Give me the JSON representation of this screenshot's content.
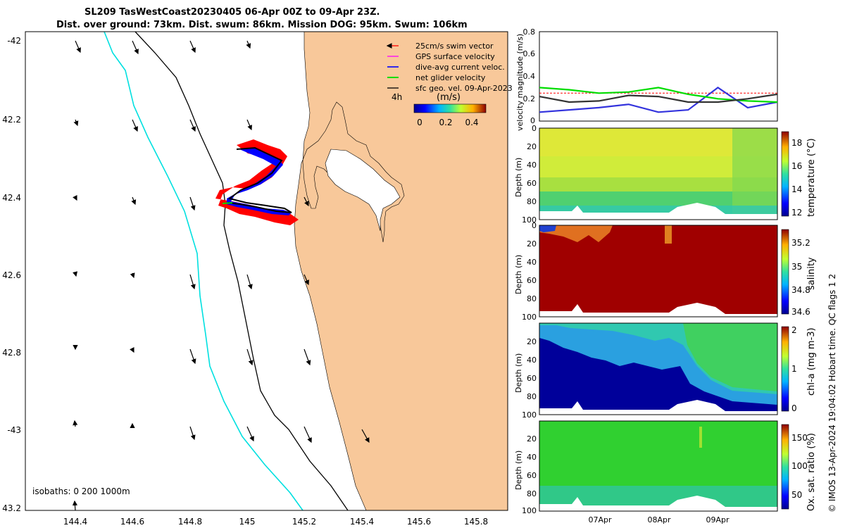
{
  "header": {
    "title_line1": "SL209 TasWestCoast20230405 06-Apr 00Z to 09-Apr 23Z.",
    "title_line2": "Dist. over ground: 73km. Dist. swum: 86km. Mission DOG: 95km. Swum: 106km"
  },
  "map": {
    "lat_ticks": [
      "-42",
      "42.2",
      "42.4",
      "42.6",
      "42.8",
      "-43",
      "43.2"
    ],
    "lon_ticks": [
      "144.4",
      "144.6",
      "144.8",
      "145",
      "145.2",
      "145.4",
      "145.6",
      "145.8"
    ],
    "isobaths_text": "isobaths: 0   200  1000m",
    "legend": [
      {
        "label": "25cm/s swim vector",
        "color": "#ff0000"
      },
      {
        "label": "GPS surface velocity",
        "color": "#ff00ff"
      },
      {
        "label": "dive-avg current veloc.",
        "color": "#0000ff"
      },
      {
        "label": "net glider velocity",
        "color": "#00dd00"
      },
      {
        "label": "sfc geo. vel. 09-Apr-2023",
        "color": "#000000"
      }
    ],
    "colorbar_4h": "4h",
    "colorbar_units": "(m/s)",
    "colorbar_ticks": [
      "0",
      "0.2",
      "0.4"
    ],
    "colors": {
      "land": "#f8c89a",
      "water": "#ffffff",
      "isobath_200": "#00e0e0",
      "isobath_1000": "#000000"
    }
  },
  "velocity_panel": {
    "ylabel": "velocity magnitude (m/s)",
    "yticks": [
      "0",
      "0.2",
      "0.4",
      "0.6",
      "0.8"
    ]
  },
  "depth_panels": [
    {
      "id": "temperature",
      "ylabel": "Depth (m)",
      "cbar_label": "temperature (°C)",
      "cbar_ticks": [
        "12",
        "14",
        "16",
        "18"
      ]
    },
    {
      "id": "salinity",
      "ylabel": "Depth (m)",
      "cbar_label": "salinity",
      "cbar_ticks": [
        "34.6",
        "34.8",
        "35",
        "35.2"
      ]
    },
    {
      "id": "chla",
      "ylabel": "Depth (m)",
      "cbar_label": "chl-a (mg m-3)",
      "cbar_ticks": [
        "0",
        "1",
        "2"
      ]
    },
    {
      "id": "oxygen",
      "ylabel": "Depth (m)",
      "cbar_label": "Ox. sat. ratio (%)",
      "cbar_ticks": [
        "50",
        "100",
        "150"
      ]
    }
  ],
  "depth_ticks": [
    "0",
    "20",
    "40",
    "60",
    "80",
    "100"
  ],
  "date_ticks": [
    "07Apr",
    "08Apr",
    "09Apr"
  ],
  "side_caption": "© IMOS 13-Apr-2024 19:04:02 Hobart time. QC flags 1  2",
  "chart_data": [
    {
      "type": "line",
      "title": "velocity magnitude",
      "ylabel": "velocity magnitude (m/s)",
      "ylim": [
        0,
        0.8
      ],
      "x_days": [
        6.0,
        6.5,
        7.0,
        7.5,
        8.0,
        8.5,
        9.0,
        9.5,
        10.0
      ],
      "series": [
        {
          "name": "net glider velocity",
          "color": "#00dd00",
          "values": [
            0.3,
            0.28,
            0.25,
            0.26,
            0.3,
            0.24,
            0.2,
            0.18,
            0.17
          ]
        },
        {
          "name": "dive-avg current veloc.",
          "color": "#3333dd",
          "values": [
            0.08,
            0.1,
            0.12,
            0.15,
            0.08,
            0.1,
            0.3,
            0.12,
            0.17
          ]
        },
        {
          "name": "sfc geo. vel.",
          "color": "#333333",
          "values": [
            0.22,
            0.17,
            0.18,
            0.23,
            0.22,
            0.17,
            0.17,
            0.2,
            0.24
          ]
        },
        {
          "name": "25cm/s swim vector",
          "color": "#ff0000",
          "values": [
            0.25,
            0.25,
            0.25,
            0.25,
            0.25,
            0.25,
            0.25,
            0.25,
            0.25
          ]
        }
      ]
    },
    {
      "type": "heatmap",
      "variable": "temperature",
      "units": "°C",
      "clim": [
        12,
        18.5
      ],
      "depth_range": [
        0,
        100
      ]
    },
    {
      "type": "heatmap",
      "variable": "salinity",
      "clim": [
        34.6,
        35.3
      ],
      "depth_range": [
        0,
        100
      ]
    },
    {
      "type": "heatmap",
      "variable": "chl-a",
      "units": "mg m-3",
      "clim": [
        0,
        2
      ],
      "depth_range": [
        0,
        100
      ]
    },
    {
      "type": "heatmap",
      "variable": "Ox. sat. ratio",
      "units": "%",
      "clim": [
        30,
        170
      ],
      "depth_range": [
        0,
        100
      ]
    }
  ]
}
